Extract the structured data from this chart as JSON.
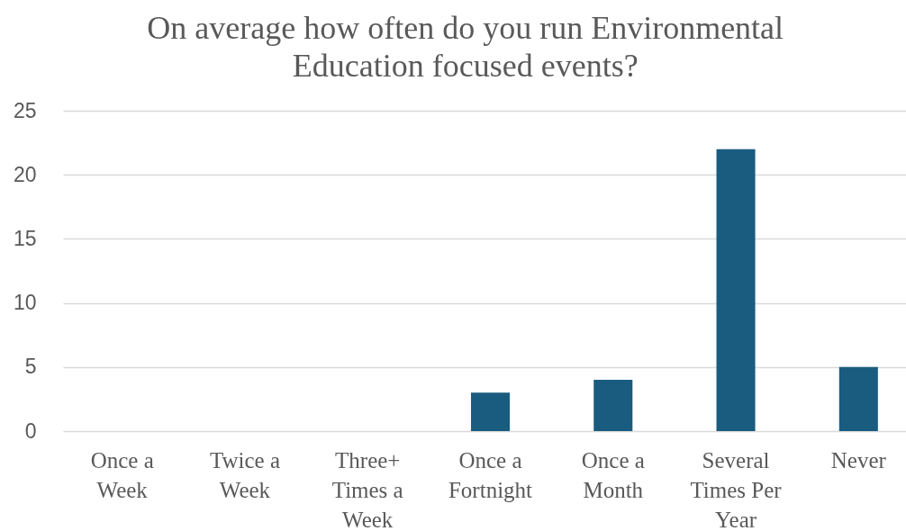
{
  "chart_data": {
    "type": "bar",
    "title": "On average how often do you run Environmental Education focused events?",
    "categories": [
      "Once a Week",
      "Twice a Week",
      "Three+ Times a Week",
      "Once a Fortnight",
      "Once a Month",
      "Several Times Per Year",
      "Never"
    ],
    "values": [
      0,
      0,
      0,
      3,
      4,
      22,
      5
    ],
    "color": "#1a5c80",
    "ylim": [
      0,
      25
    ],
    "yticks": [
      0,
      5,
      10,
      15,
      20,
      25
    ],
    "grid": "y"
  }
}
